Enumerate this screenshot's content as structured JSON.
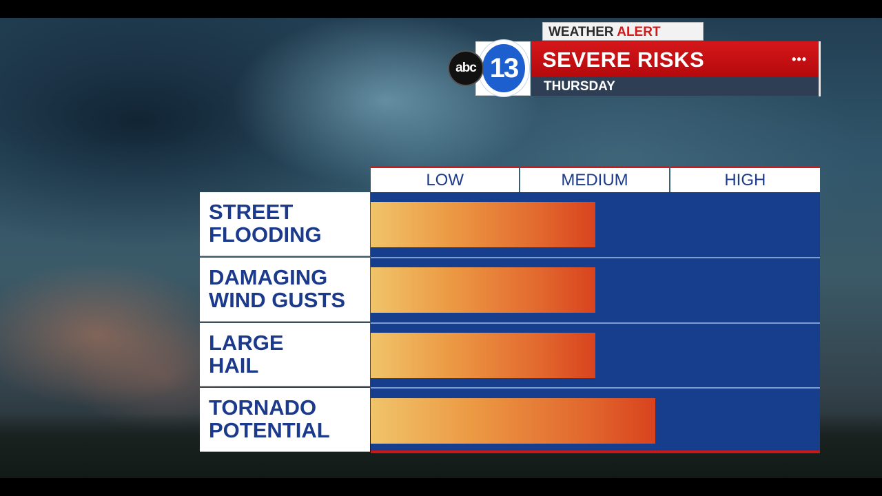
{
  "header": {
    "alert_word": "WEATHER",
    "alert_label": "ALERT",
    "title": "SEVERE RISKS",
    "dots": "•••",
    "subtitle": "THURSDAY",
    "logo_number": "13",
    "logo_network": "abc"
  },
  "colors": {
    "bar_start": "#f0c46a",
    "bar_end": "#d8431e",
    "plot_background": "#163e8c",
    "accent_red": "#d21a1a",
    "label_text": "#1c3a8c"
  },
  "chart_data": {
    "type": "bar",
    "orientation": "horizontal",
    "levels": [
      "LOW",
      "MEDIUM",
      "HIGH"
    ],
    "categories": [
      "STREET\nFLOODING",
      "DAMAGING\nWIND GUSTS",
      "LARGE\nHAIL",
      "TORNADO\nPOTENTIAL"
    ],
    "values": [
      1.5,
      1.5,
      1.5,
      1.9
    ],
    "xlim": [
      0,
      3
    ],
    "grid": true,
    "legend": "none"
  }
}
